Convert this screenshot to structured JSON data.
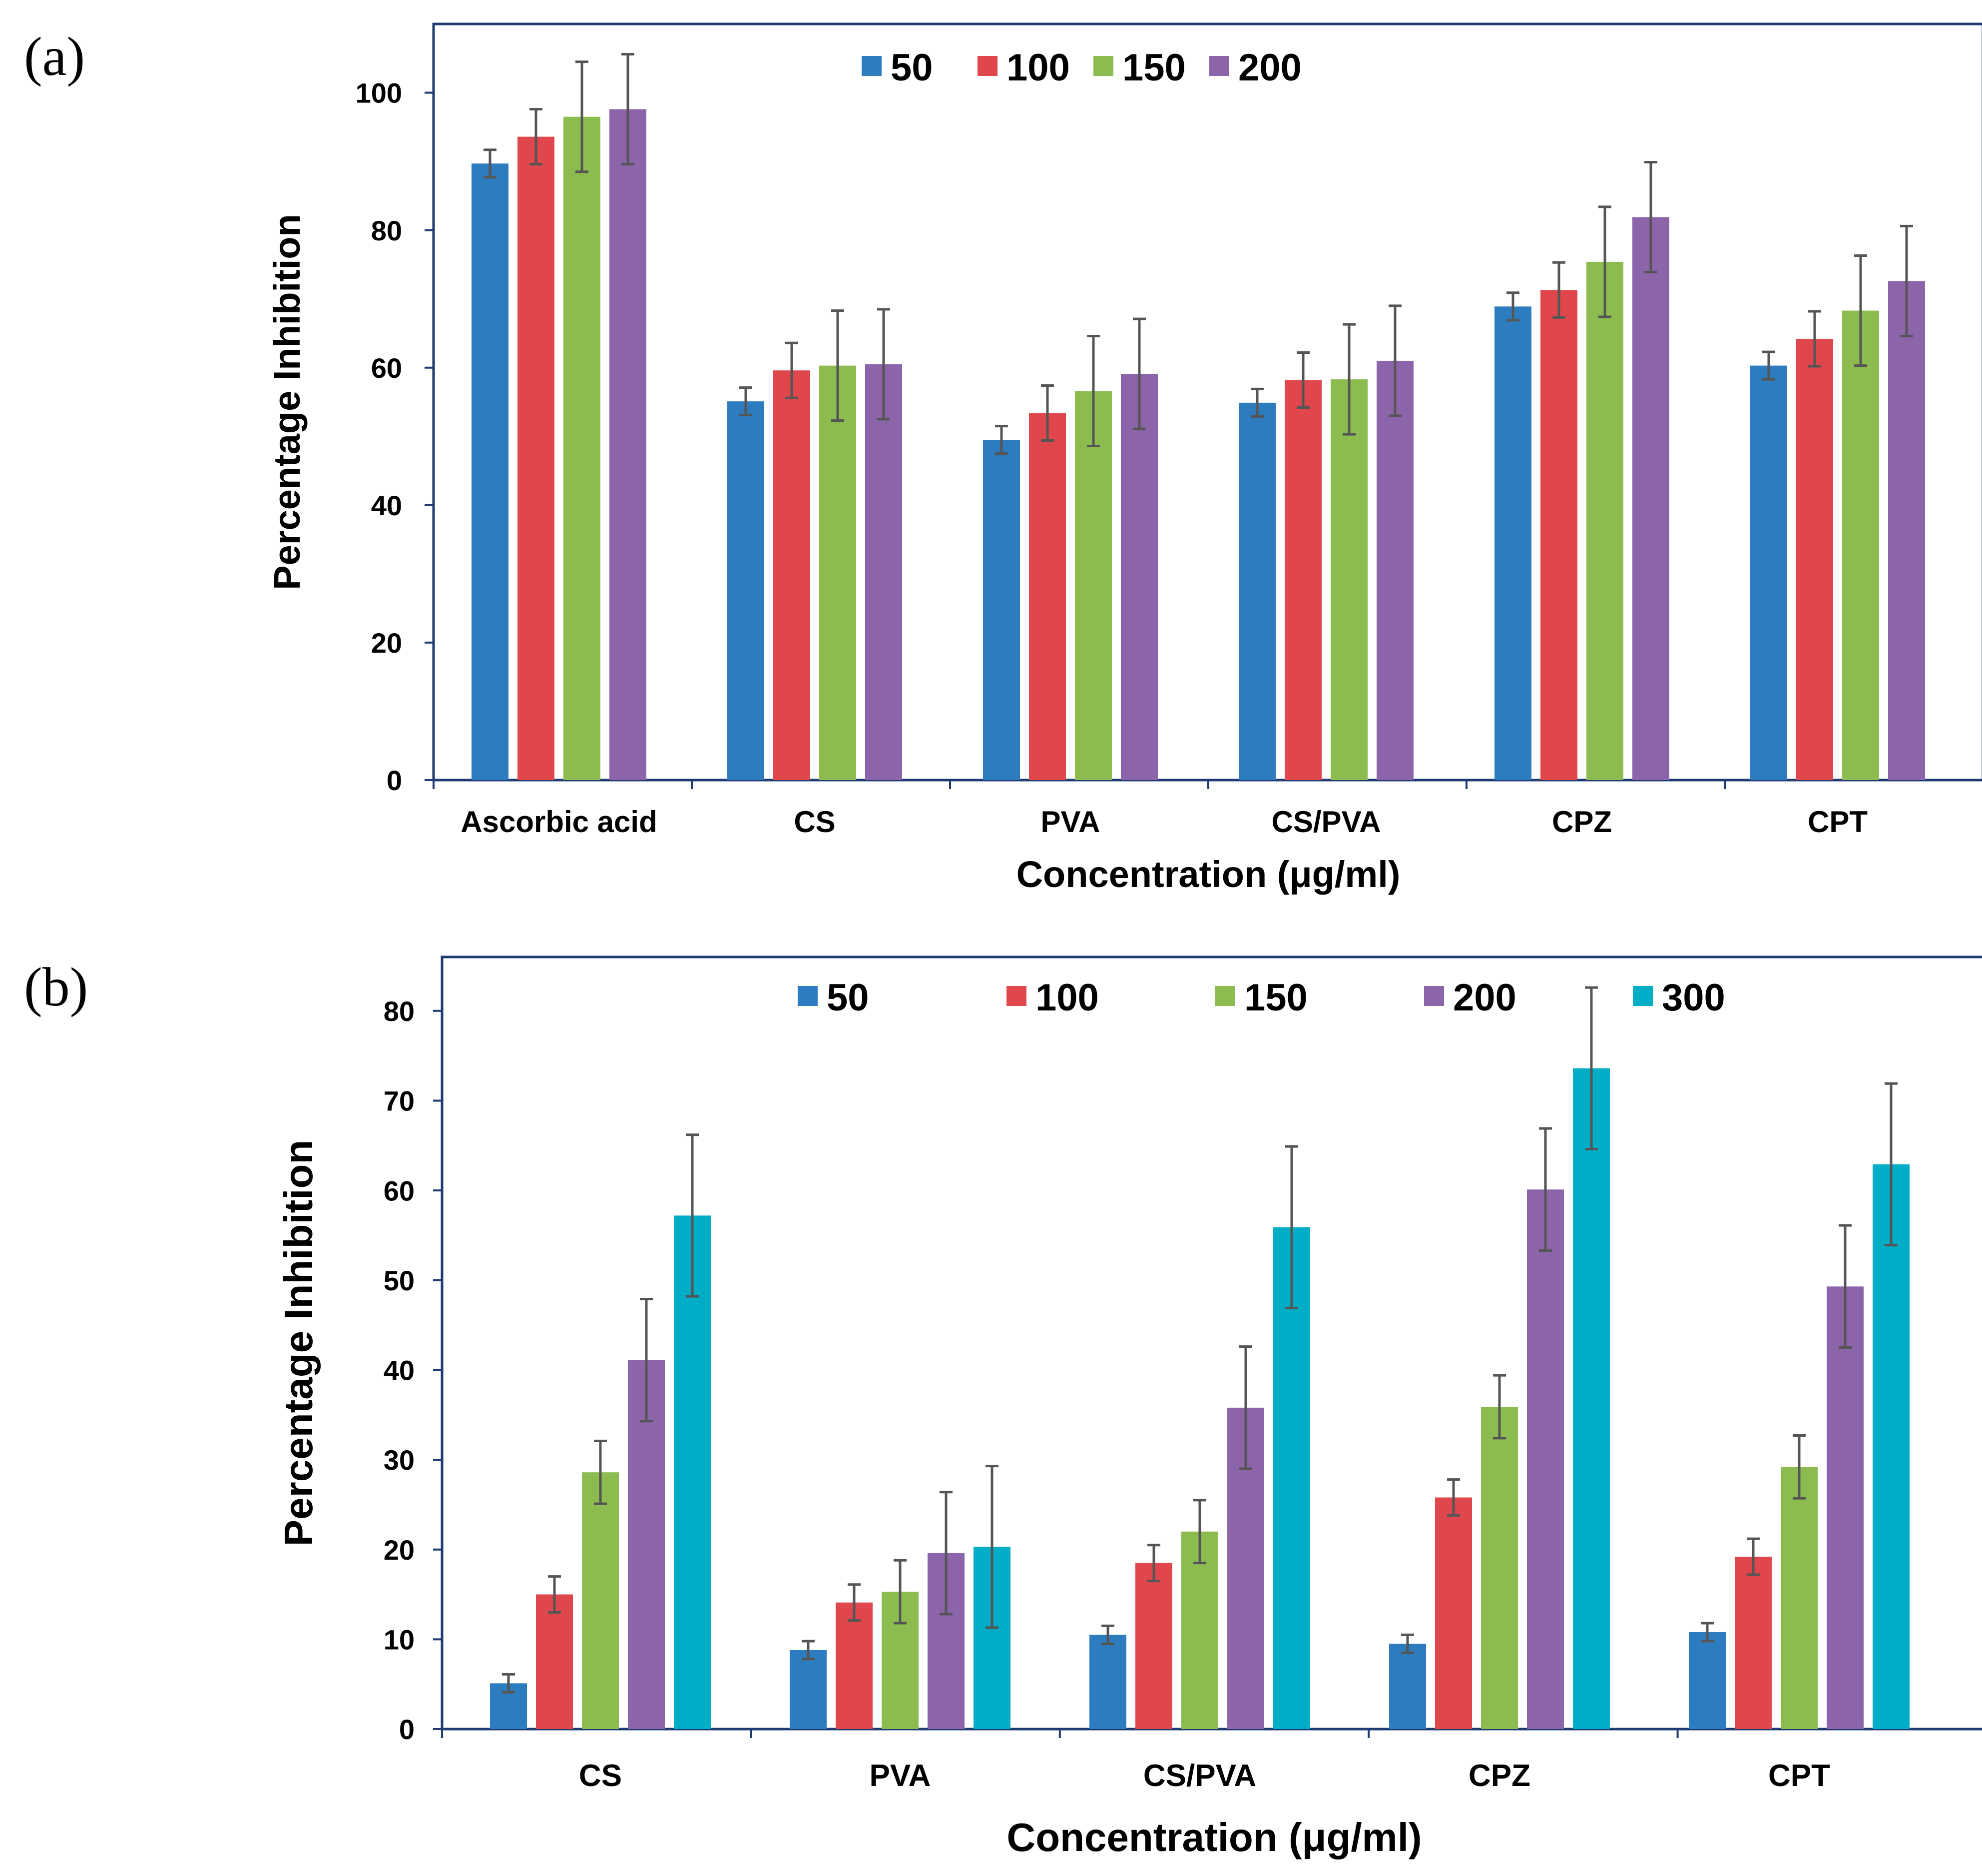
{
  "chart_data": [
    {
      "type": "bar",
      "panel_label": "(a)",
      "title": "",
      "xlabel": "Concentration (μg/ml)",
      "ylabel": "Percentage Inhibition",
      "ylim": [
        0,
        110
      ],
      "yticks": [
        0,
        20,
        40,
        60,
        80,
        100
      ],
      "grid": false,
      "legend_position": "top-center",
      "categories": [
        "Ascorbic acid",
        "CS",
        "PVA",
        "CS/PVA",
        "CPZ",
        "CPT"
      ],
      "series": [
        {
          "name": "50",
          "color": "#2e7cc0",
          "values": [
            89.7,
            55.1,
            49.5,
            54.9,
            68.9,
            60.3
          ],
          "errors": [
            2.0,
            2.0,
            2.0,
            2.0,
            2.0,
            2.0
          ]
        },
        {
          "name": "100",
          "color": "#e0474c",
          "values": [
            93.6,
            59.6,
            53.4,
            58.2,
            71.3,
            64.2
          ],
          "errors": [
            4.0,
            4.0,
            4.0,
            4.0,
            4.0,
            4.0
          ]
        },
        {
          "name": "150",
          "color": "#8cbc4f",
          "values": [
            96.5,
            60.3,
            56.6,
            58.3,
            75.4,
            68.3
          ],
          "errors": [
            8.0,
            8.0,
            8.0,
            8.0,
            8.0,
            8.0
          ]
        },
        {
          "name": "200",
          "color": "#8c64aa",
          "values": [
            97.6,
            60.5,
            59.1,
            61.0,
            81.9,
            72.6
          ],
          "errors": [
            8.0,
            8.0,
            8.0,
            8.0,
            8.0,
            8.0
          ]
        }
      ]
    },
    {
      "type": "bar",
      "panel_label": "(b)",
      "title": "",
      "xlabel": "Concentration (μg/ml)",
      "ylabel": "Percentage Inhibition",
      "ylim": [
        0,
        86
      ],
      "yticks": [
        0,
        10,
        20,
        30,
        40,
        50,
        60,
        70,
        80
      ],
      "grid": false,
      "legend_position": "top-center",
      "categories": [
        "CS",
        "PVA",
        "CS/PVA",
        "CPZ",
        "CPT"
      ],
      "series": [
        {
          "name": "50",
          "color": "#2e7cc0",
          "values": [
            5.1,
            8.8,
            10.5,
            9.5,
            10.8
          ],
          "errors": [
            1.0,
            1.0,
            1.0,
            1.0,
            1.0
          ]
        },
        {
          "name": "100",
          "color": "#e0474c",
          "values": [
            15.0,
            14.1,
            18.5,
            25.8,
            19.2
          ],
          "errors": [
            2.0,
            2.0,
            2.0,
            2.0,
            2.0
          ]
        },
        {
          "name": "150",
          "color": "#8cbc4f",
          "values": [
            28.6,
            15.3,
            22.0,
            35.9,
            29.2
          ],
          "errors": [
            3.5,
            3.5,
            3.5,
            3.5,
            3.5
          ]
        },
        {
          "name": "200",
          "color": "#8c64aa",
          "values": [
            41.1,
            19.6,
            35.8,
            60.1,
            49.3
          ],
          "errors": [
            6.8,
            6.8,
            6.8,
            6.8,
            6.8
          ]
        },
        {
          "name": "300",
          "color": "#00adc6",
          "values": [
            57.2,
            20.3,
            55.9,
            73.6,
            62.9
          ],
          "errors": [
            9.0,
            9.0,
            9.0,
            9.0,
            9.0
          ]
        }
      ]
    }
  ]
}
